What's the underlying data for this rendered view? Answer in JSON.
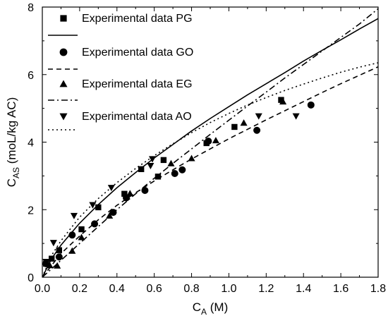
{
  "chart_data": {
    "type": "scatter",
    "title": "",
    "xlabel": {
      "main": "C",
      "sub": "A",
      "unit": " (M)"
    },
    "ylabel": {
      "main": "C",
      "sub": "AS",
      "unit": " (moL/kg AC)"
    },
    "xlim": [
      0,
      1.8
    ],
    "ylim": [
      0,
      8
    ],
    "xticks": [
      0.0,
      0.2,
      0.4,
      0.6,
      0.8,
      1.0,
      1.2,
      1.4,
      1.6,
      1.8
    ],
    "xtick_labels": [
      "0.0",
      "0.2",
      "0.4",
      "0.6",
      "0.8",
      "1.0",
      "1.2",
      "1.4",
      "1.6",
      "1.8"
    ],
    "yticks": [
      0,
      2,
      4,
      6,
      8
    ],
    "ytick_labels": [
      "0",
      "2",
      "4",
      "6",
      "8"
    ],
    "grid": false,
    "legend_position": "top-left",
    "series": [
      {
        "name": "Experimental data PG",
        "marker": "square",
        "color": "#000000",
        "x": [
          0.02,
          0.05,
          0.09,
          0.21,
          0.3,
          0.44,
          0.53,
          0.62,
          0.65,
          0.88,
          1.03,
          1.28
        ],
        "y": [
          0.4,
          0.55,
          0.8,
          1.42,
          2.07,
          2.47,
          3.2,
          2.98,
          3.47,
          3.97,
          4.45,
          5.25
        ]
      },
      {
        "name": "",
        "line": "solid",
        "color": "#000000",
        "x": [
          0,
          0.05,
          0.1,
          0.2,
          0.3,
          0.4,
          0.5,
          0.6,
          0.7,
          0.8,
          0.9,
          1.0,
          1.1,
          1.2,
          1.3,
          1.4,
          1.5,
          1.6,
          1.7,
          1.8
        ],
        "y": [
          0,
          0.55,
          0.95,
          1.6,
          2.15,
          2.65,
          3.1,
          3.53,
          3.93,
          4.33,
          4.7,
          5.05,
          5.4,
          5.73,
          6.06,
          6.4,
          6.72,
          7.03,
          7.35,
          7.66
        ]
      },
      {
        "name": "Experimental data GO",
        "marker": "circle",
        "color": "#000000",
        "x": [
          0.02,
          0.09,
          0.16,
          0.28,
          0.38,
          0.45,
          0.55,
          0.71,
          0.75,
          0.89,
          1.15,
          1.44
        ],
        "y": [
          0.4,
          0.6,
          1.25,
          1.58,
          1.92,
          2.35,
          2.57,
          3.07,
          3.18,
          4.03,
          4.35,
          5.1
        ]
      },
      {
        "name": "",
        "line": "dashed",
        "color": "#000000",
        "x": [
          0,
          0.05,
          0.1,
          0.2,
          0.3,
          0.4,
          0.5,
          0.6,
          0.7,
          0.8,
          0.9,
          1.0,
          1.1,
          1.2,
          1.3,
          1.4,
          1.5,
          1.6,
          1.7,
          1.8
        ],
        "y": [
          0,
          0.35,
          0.7,
          1.22,
          1.7,
          2.13,
          2.5,
          2.85,
          3.18,
          3.5,
          3.8,
          4.1,
          4.38,
          4.66,
          4.93,
          5.2,
          5.47,
          5.73,
          5.98,
          6.23
        ]
      },
      {
        "name": "Experimental data EG",
        "marker": "triangle-up",
        "color": "#000000",
        "x": [
          0.04,
          0.08,
          0.16,
          0.21,
          0.36,
          0.47,
          0.69,
          0.8,
          0.93,
          1.08,
          1.29
        ],
        "y": [
          0.35,
          0.34,
          0.78,
          1.18,
          1.82,
          2.48,
          3.37,
          3.52,
          4.05,
          4.57,
          5.2
        ]
      },
      {
        "name": "",
        "line": "dashdot",
        "color": "#000000",
        "x": [
          0,
          0.05,
          0.1,
          0.2,
          0.3,
          0.4,
          0.5,
          0.6,
          0.7,
          0.8,
          0.9,
          1.0,
          1.1,
          1.2,
          1.3,
          1.4,
          1.5,
          1.6,
          1.7,
          1.8
        ],
        "y": [
          0,
          0.25,
          0.5,
          1.0,
          1.5,
          2.0,
          2.47,
          2.93,
          3.37,
          3.8,
          4.23,
          4.65,
          5.07,
          5.48,
          5.9,
          6.3,
          6.7,
          7.1,
          7.5,
          7.95
        ]
      },
      {
        "name": "Experimental data AO",
        "marker": "triangle-down",
        "color": "#000000",
        "x": [
          0.02,
          0.06,
          0.17,
          0.27,
          0.37,
          0.58,
          0.59,
          1.16,
          1.36
        ],
        "y": [
          0.46,
          1.02,
          1.82,
          2.14,
          2.65,
          3.3,
          3.5,
          4.77,
          4.77
        ]
      },
      {
        "name": "",
        "line": "dotted",
        "color": "#000000",
        "x": [
          0,
          0.05,
          0.1,
          0.2,
          0.3,
          0.4,
          0.5,
          0.6,
          0.7,
          0.8,
          0.9,
          1.0,
          1.1,
          1.2,
          1.3,
          1.4,
          1.5,
          1.6,
          1.7,
          1.8
        ],
        "y": [
          0,
          0.65,
          1.08,
          1.78,
          2.33,
          2.8,
          3.22,
          3.6,
          3.95,
          4.28,
          4.58,
          4.85,
          5.1,
          5.32,
          5.53,
          5.72,
          5.9,
          6.07,
          6.22,
          6.35
        ]
      }
    ]
  }
}
